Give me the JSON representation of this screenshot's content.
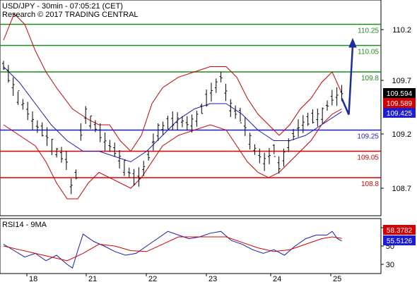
{
  "header": {
    "line1": "USD/JPY - 30min - 07:05:21 (CET)",
    "line2": "Research © 2017 TRADING CENTRAL"
  },
  "colors": {
    "resistance": "#1f8c1f",
    "support": "#e00000",
    "pivot": "#1c1cd8",
    "price": "#000000",
    "bollinger": "#d40000",
    "moving_average": "#1c1cb4",
    "rsi": "#1c1cb4",
    "rsi_ma": "#d40000",
    "forecast_arrow": "#1c2ca0"
  },
  "chart_data": [
    {
      "type": "ohlc",
      "title": "USD/JPY - 30min - 07:05:21 (CET)",
      "subtitle": "Research © 2017 TRADING CENTRAL",
      "x_tick_labels": [
        "18",
        "21",
        "22",
        "23",
        "24",
        "25"
      ],
      "y_tick_labels": [
        "110.2",
        "109.7",
        "109.2",
        "108.7"
      ],
      "ylim": [
        108.48,
        110.42
      ],
      "grid": false,
      "levels": [
        {
          "label": "110.25",
          "value": 110.25,
          "kind": "resistance"
        },
        {
          "label": "110.05",
          "value": 110.05,
          "kind": "resistance"
        },
        {
          "label": "109.8",
          "value": 109.8,
          "kind": "resistance"
        },
        {
          "label": "109.25",
          "value": 109.25,
          "kind": "pivot"
        },
        {
          "label": "109.05",
          "value": 109.05,
          "kind": "support"
        },
        {
          "label": "108.8",
          "value": 108.8,
          "kind": "support"
        }
      ],
      "value_tags": [
        {
          "label": "109.594",
          "value": 109.594,
          "color": "#000000"
        },
        {
          "label": "109.589",
          "value": 109.52,
          "color": "#d40000"
        },
        {
          "label": "109.425",
          "value": 109.425,
          "color": "#1c1cd8"
        }
      ],
      "price_path": [
        [
          0,
          109.85
        ],
        [
          3,
          109.55
        ],
        [
          6,
          109.3
        ],
        [
          8,
          109.2
        ],
        [
          10,
          109.05
        ],
        [
          12,
          108.95
        ],
        [
          13,
          108.65
        ],
        [
          14,
          108.9
        ],
        [
          15,
          109.45
        ],
        [
          17,
          109.3
        ],
        [
          19,
          109.15
        ],
        [
          21,
          109.05
        ],
        [
          23,
          108.9
        ],
        [
          25,
          108.75
        ],
        [
          27,
          108.95
        ],
        [
          29,
          109.25
        ],
        [
          31,
          109.3
        ],
        [
          33,
          109.35
        ],
        [
          35,
          109.3
        ],
        [
          37,
          109.4
        ],
        [
          39,
          109.6
        ],
        [
          41,
          109.75
        ],
        [
          43,
          109.45
        ],
        [
          45,
          109.35
        ],
        [
          47,
          109.1
        ],
        [
          49,
          108.95
        ],
        [
          51,
          109.05
        ],
        [
          52,
          108.9
        ],
        [
          54,
          109.15
        ],
        [
          56,
          109.3
        ],
        [
          58,
          109.35
        ],
        [
          60,
          109.4
        ],
        [
          62,
          109.55
        ],
        [
          63.8,
          109.594
        ]
      ],
      "forecast_path": [
        [
          63.8,
          109.45
        ],
        [
          65.6,
          110.1
        ]
      ],
      "bollinger_upper": [
        [
          0,
          110.1
        ],
        [
          2,
          110.35
        ],
        [
          4,
          110.25
        ],
        [
          6,
          110.0
        ],
        [
          8,
          109.8
        ],
        [
          10,
          109.65
        ],
        [
          13,
          109.45
        ],
        [
          16,
          109.35
        ],
        [
          18,
          109.3
        ],
        [
          20,
          109.3
        ],
        [
          22,
          109.15
        ],
        [
          24,
          109.05
        ],
        [
          26,
          109.2
        ],
        [
          28,
          109.5
        ],
        [
          30,
          109.65
        ],
        [
          33,
          109.75
        ],
        [
          36,
          109.8
        ],
        [
          39,
          109.85
        ],
        [
          42,
          109.85
        ],
        [
          44,
          109.75
        ],
        [
          46,
          109.55
        ],
        [
          48,
          109.4
        ],
        [
          50,
          109.3
        ],
        [
          52,
          109.2
        ],
        [
          54,
          109.3
        ],
        [
          56,
          109.45
        ],
        [
          58,
          109.55
        ],
        [
          60,
          109.7
        ],
        [
          62,
          109.8
        ],
        [
          63.8,
          109.6
        ]
      ],
      "bollinger_lower": [
        [
          0,
          109.3
        ],
        [
          3,
          109.2
        ],
        [
          6,
          109.1
        ],
        [
          8,
          108.95
        ],
        [
          10,
          108.75
        ],
        [
          12,
          108.6
        ],
        [
          14,
          108.6
        ],
        [
          16,
          108.75
        ],
        [
          18,
          108.85
        ],
        [
          20,
          108.8
        ],
        [
          22,
          108.75
        ],
        [
          24,
          108.7
        ],
        [
          26,
          108.8
        ],
        [
          28,
          108.95
        ],
        [
          30,
          109.1
        ],
        [
          33,
          109.2
        ],
        [
          36,
          109.25
        ],
        [
          39,
          109.3
        ],
        [
          42,
          109.25
        ],
        [
          44,
          109.1
        ],
        [
          46,
          108.95
        ],
        [
          48,
          108.85
        ],
        [
          50,
          108.8
        ],
        [
          52,
          108.85
        ],
        [
          54,
          108.95
        ],
        [
          56,
          109.05
        ],
        [
          58,
          109.15
        ],
        [
          60,
          109.3
        ],
        [
          62,
          109.4
        ],
        [
          63.8,
          109.45
        ]
      ],
      "moving_average": [
        [
          0,
          109.85
        ],
        [
          3,
          109.7
        ],
        [
          6,
          109.5
        ],
        [
          9,
          109.3
        ],
        [
          12,
          109.15
        ],
        [
          15,
          109.05
        ],
        [
          18,
          109.05
        ],
        [
          21,
          109.0
        ],
        [
          24,
          108.95
        ],
        [
          27,
          109.05
        ],
        [
          30,
          109.2
        ],
        [
          33,
          109.35
        ],
        [
          36,
          109.45
        ],
        [
          39,
          109.5
        ],
        [
          42,
          109.5
        ],
        [
          45,
          109.4
        ],
        [
          48,
          109.25
        ],
        [
          51,
          109.15
        ],
        [
          54,
          109.15
        ],
        [
          57,
          109.2
        ],
        [
          60,
          109.3
        ],
        [
          63.8,
          109.425
        ]
      ]
    },
    {
      "type": "line",
      "title": "RSI14 - 9MA",
      "y_tick_labels": [
        "70",
        "50",
        "30"
      ],
      "ylim": [
        22,
        78
      ],
      "grid": false,
      "value_tags": [
        {
          "label": "58.3782",
          "value": 58.3782,
          "color": "#d40000"
        },
        {
          "label": "55.5126",
          "value": 55.5126,
          "color": "#1c1cd8"
        }
      ],
      "series": [
        {
          "kind": "rsi",
          "values": [
            [
              0,
              52
            ],
            [
              2,
              45
            ],
            [
              4,
              38
            ],
            [
              6,
              42
            ],
            [
              8,
              34
            ],
            [
              10,
              40
            ],
            [
              12,
              30
            ],
            [
              13,
              26
            ],
            [
              14,
              45
            ],
            [
              15,
              63
            ],
            [
              17,
              55
            ],
            [
              19,
              50
            ],
            [
              21,
              44
            ],
            [
              23,
              40
            ],
            [
              25,
              42
            ],
            [
              27,
              50
            ],
            [
              29,
              58
            ],
            [
              31,
              66
            ],
            [
              33,
              62
            ],
            [
              35,
              58
            ],
            [
              37,
              60
            ],
            [
              39,
              64
            ],
            [
              41,
              66
            ],
            [
              43,
              56
            ],
            [
              45,
              52
            ],
            [
              47,
              46
            ],
            [
              49,
              42
            ],
            [
              51,
              46
            ],
            [
              53,
              40
            ],
            [
              55,
              50
            ],
            [
              57,
              58
            ],
            [
              59,
              62
            ],
            [
              61,
              62
            ],
            [
              62,
              66
            ],
            [
              63,
              58
            ],
            [
              63.8,
              55.5126
            ]
          ]
        },
        {
          "kind": "rsi_ma",
          "values": [
            [
              0,
              50
            ],
            [
              3,
              46
            ],
            [
              6,
              42
            ],
            [
              9,
              38
            ],
            [
              12,
              34
            ],
            [
              15,
              42
            ],
            [
              18,
              52
            ],
            [
              21,
              50
            ],
            [
              24,
              45
            ],
            [
              27,
              44
            ],
            [
              30,
              52
            ],
            [
              33,
              60
            ],
            [
              36,
              60
            ],
            [
              39,
              60
            ],
            [
              42,
              60
            ],
            [
              45,
              54
            ],
            [
              48,
              48
            ],
            [
              51,
              44
            ],
            [
              54,
              46
            ],
            [
              57,
              52
            ],
            [
              60,
              58
            ],
            [
              62,
              60
            ],
            [
              63.8,
              58.3782
            ]
          ]
        }
      ]
    }
  ]
}
